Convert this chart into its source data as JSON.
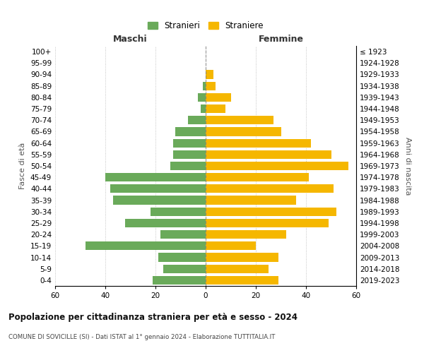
{
  "age_groups": [
    "100+",
    "95-99",
    "90-94",
    "85-89",
    "80-84",
    "75-79",
    "70-74",
    "65-69",
    "60-64",
    "55-59",
    "50-54",
    "45-49",
    "40-44",
    "35-39",
    "30-34",
    "25-29",
    "20-24",
    "15-19",
    "10-14",
    "5-9",
    "0-4"
  ],
  "birth_years": [
    "≤ 1923",
    "1924-1928",
    "1929-1933",
    "1934-1938",
    "1939-1943",
    "1944-1948",
    "1949-1953",
    "1954-1958",
    "1959-1963",
    "1964-1968",
    "1969-1973",
    "1974-1978",
    "1979-1983",
    "1984-1988",
    "1989-1993",
    "1994-1998",
    "1999-2003",
    "2004-2008",
    "2009-2013",
    "2014-2018",
    "2019-2023"
  ],
  "males": [
    0,
    0,
    0,
    1,
    3,
    2,
    7,
    12,
    13,
    13,
    14,
    40,
    38,
    37,
    22,
    32,
    18,
    48,
    19,
    17,
    21
  ],
  "females": [
    0,
    0,
    3,
    4,
    10,
    8,
    27,
    30,
    42,
    50,
    57,
    41,
    51,
    36,
    52,
    49,
    32,
    20,
    29,
    25,
    29
  ],
  "male_color": "#6aaa5a",
  "female_color": "#f5b700",
  "male_label": "Stranieri",
  "female_label": "Straniere",
  "title": "Popolazione per cittadinanza straniera per età e sesso - 2024",
  "subtitle": "COMUNE DI SOVICILLE (SI) - Dati ISTAT al 1° gennaio 2024 - Elaborazione TUTTITALIA.IT",
  "xlabel_left": "Maschi",
  "xlabel_right": "Femmine",
  "ylabel_left": "Fasce di età",
  "ylabel_right": "Anni di nascita",
  "xlim": 60,
  "background_color": "#ffffff"
}
